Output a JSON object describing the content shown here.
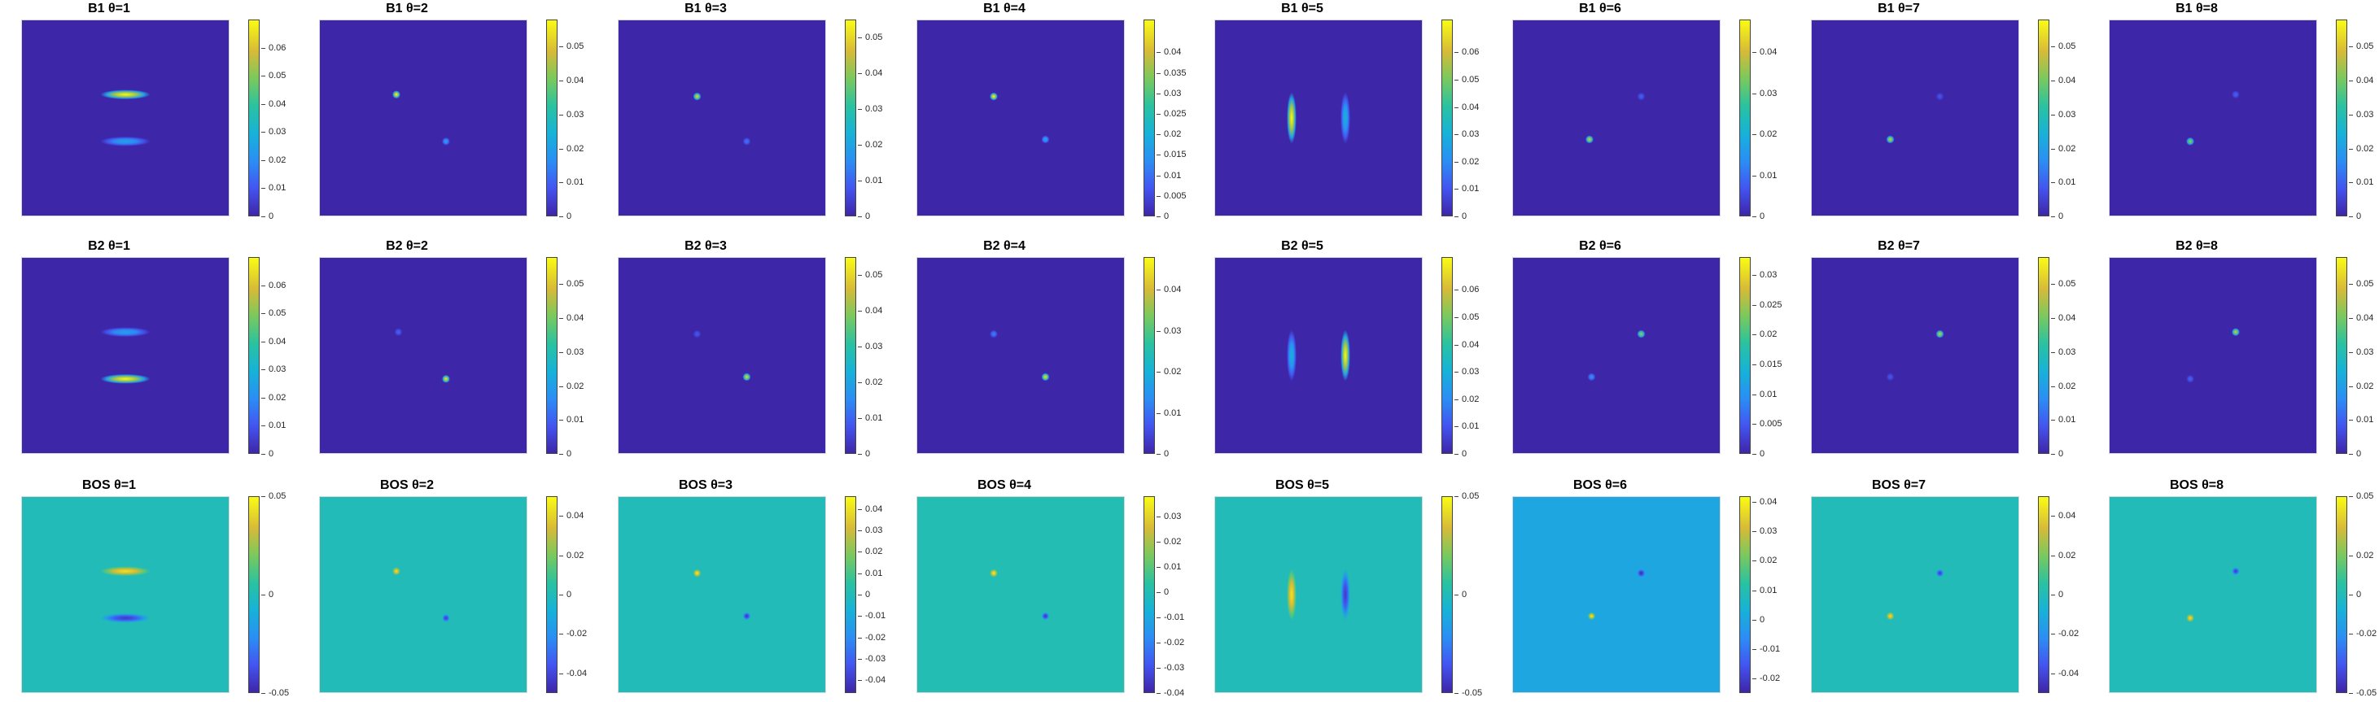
{
  "figure": {
    "panel_titles": [
      [
        "B1 θ=1",
        "B1 θ=2",
        "B1 θ=3",
        "B1 θ=4",
        "B1 θ=5",
        "B1 θ=6",
        "B1 θ=7",
        "B1 θ=8"
      ],
      [
        "B2 θ=1",
        "B2 θ=2",
        "B2 θ=3",
        "B2 θ=4",
        "B2 θ=5",
        "B2 θ=6",
        "B2 θ=7",
        "B2 θ=8"
      ],
      [
        "BOS θ=1",
        "BOS θ=2",
        "BOS θ=3",
        "BOS θ=4",
        "BOS θ=5",
        "BOS θ=6",
        "BOS θ=7",
        "BOS θ=8"
      ]
    ]
  },
  "chart_data": {
    "type": "heatmap",
    "colormap": "parula",
    "grid": false,
    "rows": [
      {
        "label": "B1",
        "panels": [
          {
            "theta": 1,
            "clim": [
              0,
              0.07
            ],
            "ticks": [
              "0",
              "0.01",
              "0.02",
              "0.03",
              "0.04",
              "0.05",
              "0.06"
            ],
            "background": 0,
            "features": [
              {
                "shape": "hbar",
                "cx": 0.5,
                "cy": 0.38,
                "peak": 0.07
              },
              {
                "shape": "hbar",
                "cx": 0.5,
                "cy": 0.62,
                "peak": 0.025
              }
            ]
          },
          {
            "theta": 2,
            "clim": [
              0,
              0.058
            ],
            "ticks": [
              "0",
              "0.01",
              "0.02",
              "0.03",
              "0.04",
              "0.05"
            ],
            "background": 0,
            "features": [
              {
                "shape": "dot",
                "cx": 0.37,
                "cy": 0.38,
                "peak": 0.058
              },
              {
                "shape": "dot",
                "cx": 0.61,
                "cy": 0.62,
                "peak": 0.02
              }
            ]
          },
          {
            "theta": 3,
            "clim": [
              0,
              0.055
            ],
            "ticks": [
              "0",
              "0.01",
              "0.02",
              "0.03",
              "0.04",
              "0.05"
            ],
            "background": 0,
            "features": [
              {
                "shape": "dot",
                "cx": 0.38,
                "cy": 0.39,
                "peak": 0.05
              },
              {
                "shape": "dot",
                "cx": 0.62,
                "cy": 0.62,
                "peak": 0.012
              }
            ]
          },
          {
            "theta": 4,
            "clim": [
              0,
              0.048
            ],
            "ticks": [
              "0",
              "0.005",
              "0.01",
              "0.015",
              "0.02",
              "0.025",
              "0.03",
              "0.035",
              "0.04"
            ],
            "background": 0,
            "features": [
              {
                "shape": "dot",
                "cx": 0.37,
                "cy": 0.39,
                "peak": 0.048
              },
              {
                "shape": "dot",
                "cx": 0.62,
                "cy": 0.61,
                "peak": 0.018
              }
            ]
          },
          {
            "theta": 5,
            "clim": [
              0,
              0.072
            ],
            "ticks": [
              "0",
              "0.01",
              "0.02",
              "0.03",
              "0.04",
              "0.05",
              "0.06"
            ],
            "background": 0,
            "features": [
              {
                "shape": "vbar",
                "cx": 0.37,
                "cy": 0.5,
                "peak": 0.072
              },
              {
                "shape": "vbar",
                "cx": 0.63,
                "cy": 0.5,
                "peak": 0.03
              }
            ]
          },
          {
            "theta": 6,
            "clim": [
              0,
              0.048
            ],
            "ticks": [
              "0",
              "0.01",
              "0.02",
              "0.03",
              "0.04"
            ],
            "background": 0,
            "features": [
              {
                "shape": "dot",
                "cx": 0.62,
                "cy": 0.39,
                "peak": 0.008
              },
              {
                "shape": "dot",
                "cx": 0.37,
                "cy": 0.61,
                "peak": 0.042
              }
            ]
          },
          {
            "theta": 7,
            "clim": [
              0,
              0.058
            ],
            "ticks": [
              "0",
              "0.01",
              "0.02",
              "0.03",
              "0.04",
              "0.05"
            ],
            "background": 0,
            "features": [
              {
                "shape": "dot",
                "cx": 0.62,
                "cy": 0.39,
                "peak": 0.008
              },
              {
                "shape": "dot",
                "cx": 0.38,
                "cy": 0.61,
                "peak": 0.05
              }
            ]
          },
          {
            "theta": 8,
            "clim": [
              0,
              0.058
            ],
            "ticks": [
              "0",
              "0.01",
              "0.02",
              "0.03",
              "0.04",
              "0.05"
            ],
            "background": 0,
            "features": [
              {
                "shape": "dot",
                "cx": 0.61,
                "cy": 0.38,
                "peak": 0.01
              },
              {
                "shape": "dot",
                "cx": 0.39,
                "cy": 0.62,
                "peak": 0.045
              }
            ]
          }
        ]
      },
      {
        "label": "B2",
        "panels": [
          {
            "theta": 1,
            "clim": [
              0,
              0.07
            ],
            "ticks": [
              "0",
              "0.01",
              "0.02",
              "0.03",
              "0.04",
              "0.05",
              "0.06"
            ],
            "background": 0,
            "features": [
              {
                "shape": "hbar",
                "cx": 0.5,
                "cy": 0.38,
                "peak": 0.025
              },
              {
                "shape": "hbar",
                "cx": 0.5,
                "cy": 0.62,
                "peak": 0.07
              }
            ]
          },
          {
            "theta": 2,
            "clim": [
              0,
              0.058
            ],
            "ticks": [
              "0",
              "0.01",
              "0.02",
              "0.03",
              "0.04",
              "0.05"
            ],
            "background": 0,
            "features": [
              {
                "shape": "dot",
                "cx": 0.38,
                "cy": 0.38,
                "peak": 0.01
              },
              {
                "shape": "dot",
                "cx": 0.61,
                "cy": 0.62,
                "peak": 0.055
              }
            ]
          },
          {
            "theta": 3,
            "clim": [
              0,
              0.055
            ],
            "ticks": [
              "0",
              "0.01",
              "0.02",
              "0.03",
              "0.04",
              "0.05"
            ],
            "background": 0,
            "features": [
              {
                "shape": "dot",
                "cx": 0.38,
                "cy": 0.39,
                "peak": 0.008
              },
              {
                "shape": "dot",
                "cx": 0.62,
                "cy": 0.61,
                "peak": 0.05
              }
            ]
          },
          {
            "theta": 4,
            "clim": [
              0,
              0.048
            ],
            "ticks": [
              "0",
              "0.01",
              "0.02",
              "0.03",
              "0.04"
            ],
            "background": 0,
            "features": [
              {
                "shape": "dot",
                "cx": 0.37,
                "cy": 0.39,
                "peak": 0.012
              },
              {
                "shape": "dot",
                "cx": 0.62,
                "cy": 0.61,
                "peak": 0.045
              }
            ]
          },
          {
            "theta": 5,
            "clim": [
              0,
              0.072
            ],
            "ticks": [
              "0",
              "0.01",
              "0.02",
              "0.03",
              "0.04",
              "0.05",
              "0.06"
            ],
            "background": 0,
            "features": [
              {
                "shape": "vbar",
                "cx": 0.37,
                "cy": 0.5,
                "peak": 0.03
              },
              {
                "shape": "vbar",
                "cx": 0.63,
                "cy": 0.5,
                "peak": 0.072
              }
            ]
          },
          {
            "theta": 6,
            "clim": [
              0,
              0.033
            ],
            "ticks": [
              "0",
              "0.005",
              "0.01",
              "0.015",
              "0.02",
              "0.025",
              "0.03"
            ],
            "background": 0,
            "features": [
              {
                "shape": "dot",
                "cx": 0.62,
                "cy": 0.39,
                "peak": 0.026
              },
              {
                "shape": "dot",
                "cx": 0.38,
                "cy": 0.61,
                "peak": 0.01
              }
            ]
          },
          {
            "theta": 7,
            "clim": [
              0,
              0.058
            ],
            "ticks": [
              "0",
              "0.01",
              "0.02",
              "0.03",
              "0.04",
              "0.05"
            ],
            "background": 0,
            "features": [
              {
                "shape": "dot",
                "cx": 0.62,
                "cy": 0.39,
                "peak": 0.05
              },
              {
                "shape": "dot",
                "cx": 0.38,
                "cy": 0.61,
                "peak": 0.008
              }
            ]
          },
          {
            "theta": 8,
            "clim": [
              0,
              0.058
            ],
            "ticks": [
              "0",
              "0.01",
              "0.02",
              "0.03",
              "0.04",
              "0.05"
            ],
            "background": 0,
            "features": [
              {
                "shape": "dot",
                "cx": 0.61,
                "cy": 0.38,
                "peak": 0.05
              },
              {
                "shape": "dot",
                "cx": 0.39,
                "cy": 0.62,
                "peak": 0.01
              }
            ]
          }
        ]
      },
      {
        "label": "BOS",
        "panels": [
          {
            "theta": 1,
            "clim": [
              -0.05,
              0.05
            ],
            "ticks": [
              "-0.05",
              "0",
              "0.05"
            ],
            "background": 0,
            "features": [
              {
                "shape": "hbar",
                "cx": 0.5,
                "cy": 0.38,
                "peak": 0.045
              },
              {
                "shape": "hbar",
                "cx": 0.5,
                "cy": 0.62,
                "peak": -0.045
              }
            ]
          },
          {
            "theta": 2,
            "clim": [
              -0.05,
              0.05
            ],
            "ticks": [
              "-0.04",
              "-0.02",
              "0",
              "0.02",
              "0.04"
            ],
            "background": 0,
            "features": [
              {
                "shape": "dot",
                "cx": 0.37,
                "cy": 0.38,
                "peak": 0.045
              },
              {
                "shape": "dot",
                "cx": 0.61,
                "cy": 0.62,
                "peak": -0.045
              }
            ]
          },
          {
            "theta": 3,
            "clim": [
              -0.046,
              0.046
            ],
            "ticks": [
              "-0.04",
              "-0.03",
              "-0.02",
              "-0.01",
              "0",
              "0.01",
              "0.02",
              "0.03",
              "0.04"
            ],
            "background": 0,
            "features": [
              {
                "shape": "dot",
                "cx": 0.38,
                "cy": 0.39,
                "peak": 0.044
              },
              {
                "shape": "dot",
                "cx": 0.62,
                "cy": 0.61,
                "peak": -0.044
              }
            ]
          },
          {
            "theta": 4,
            "clim": [
              -0.04,
              0.038
            ],
            "ticks": [
              "-0.04",
              "-0.03",
              "-0.02",
              "-0.01",
              "0",
              "0.01",
              "0.02",
              "0.03"
            ],
            "background": 0,
            "features": [
              {
                "shape": "dot",
                "cx": 0.37,
                "cy": 0.39,
                "peak": 0.036
              },
              {
                "shape": "dot",
                "cx": 0.62,
                "cy": 0.61,
                "peak": -0.038
              }
            ]
          },
          {
            "theta": 5,
            "clim": [
              -0.05,
              0.05
            ],
            "ticks": [
              "-0.05",
              "0",
              "0.05"
            ],
            "background": 0,
            "features": [
              {
                "shape": "vbar",
                "cx": 0.37,
                "cy": 0.5,
                "peak": 0.045
              },
              {
                "shape": "vbar",
                "cx": 0.63,
                "cy": 0.5,
                "peak": -0.045
              }
            ]
          },
          {
            "theta": 6,
            "clim": [
              -0.025,
              0.042
            ],
            "ticks": [
              "-0.02",
              "-0.01",
              "0",
              "0.01",
              "0.02",
              "0.03",
              "0.04"
            ],
            "background": 0,
            "features": [
              {
                "shape": "dot",
                "cx": 0.62,
                "cy": 0.39,
                "peak": -0.024
              },
              {
                "shape": "dot",
                "cx": 0.38,
                "cy": 0.61,
                "peak": 0.04
              }
            ]
          },
          {
            "theta": 7,
            "clim": [
              -0.05,
              0.05
            ],
            "ticks": [
              "-0.04",
              "-0.02",
              "0",
              "0.02",
              "0.04"
            ],
            "background": 0,
            "features": [
              {
                "shape": "dot",
                "cx": 0.62,
                "cy": 0.39,
                "peak": -0.045
              },
              {
                "shape": "dot",
                "cx": 0.38,
                "cy": 0.61,
                "peak": 0.045
              }
            ]
          },
          {
            "theta": 8,
            "clim": [
              -0.05,
              0.05
            ],
            "ticks": [
              "-0.05",
              "-0.02",
              "0",
              "0.02",
              "0.05"
            ],
            "background": 0,
            "features": [
              {
                "shape": "dot",
                "cx": 0.61,
                "cy": 0.38,
                "peak": -0.045
              },
              {
                "shape": "dot",
                "cx": 0.39,
                "cy": 0.62,
                "peak": 0.045
              }
            ]
          }
        ]
      }
    ]
  }
}
